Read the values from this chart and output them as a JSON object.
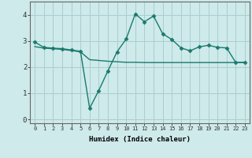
{
  "line1_x": [
    0,
    1,
    2,
    3,
    4,
    5,
    6,
    7,
    8,
    9,
    10,
    11,
    12,
    13,
    14,
    15,
    16,
    17,
    18,
    19,
    20,
    21,
    22,
    23
  ],
  "line1_y": [
    2.95,
    2.75,
    2.72,
    2.7,
    2.65,
    2.6,
    0.42,
    1.1,
    1.85,
    2.58,
    3.07,
    4.03,
    3.73,
    3.95,
    3.27,
    3.05,
    2.73,
    2.62,
    2.77,
    2.83,
    2.75,
    2.73,
    2.17,
    2.18
  ],
  "line2_x": [
    0,
    1,
    2,
    3,
    4,
    5,
    6,
    7,
    8,
    9,
    10,
    11,
    12,
    13,
    14,
    15,
    16,
    17,
    18,
    19,
    20,
    21,
    22,
    23
  ],
  "line2_y": [
    2.78,
    2.72,
    2.7,
    2.67,
    2.63,
    2.58,
    2.28,
    2.25,
    2.22,
    2.2,
    2.18,
    2.18,
    2.17,
    2.17,
    2.17,
    2.17,
    2.17,
    2.17,
    2.17,
    2.17,
    2.17,
    2.17,
    2.17,
    2.17
  ],
  "line_color": "#1a7a6e",
  "bg_color": "#ceeaea",
  "grid_color": "#aacece",
  "xlabel": "Humidex (Indice chaleur)",
  "xlim": [
    -0.5,
    23.5
  ],
  "ylim": [
    -0.15,
    4.5
  ],
  "yticks": [
    0,
    1,
    2,
    3,
    4
  ],
  "xticks": [
    0,
    1,
    2,
    3,
    4,
    5,
    6,
    7,
    8,
    9,
    10,
    11,
    12,
    13,
    14,
    15,
    16,
    17,
    18,
    19,
    20,
    21,
    22,
    23
  ]
}
